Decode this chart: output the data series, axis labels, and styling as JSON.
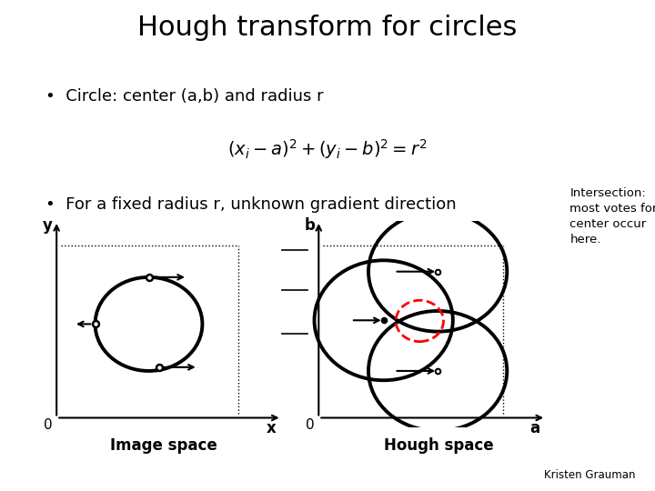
{
  "title": "Hough transform for circles",
  "bullet1": "Circle: center (a,b) and radius r",
  "formula": "$(x_i - a)^2 + (y_i - b)^2 = r^2$",
  "bullet2": "For a fixed radius r, unknown gradient direction",
  "intersection_text": "Intersection:\nmost votes for\ncenter occur\nhere.",
  "credit": "Kristen Grauman",
  "bg_color": "#ffffff",
  "title_fontsize": 22,
  "body_fontsize": 13,
  "formula_fontsize": 14
}
